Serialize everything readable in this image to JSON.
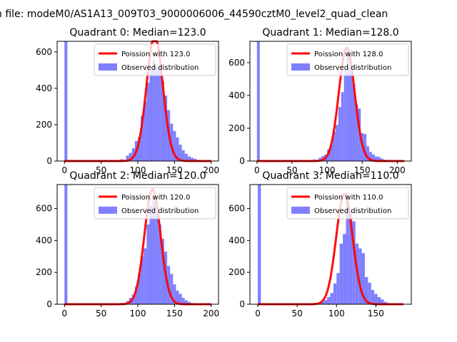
{
  "figure": {
    "suptitle": "n file: modeM0/AS1A13_009T03_9000006006_44590cztM0_level2_quad_clean"
  },
  "colors": {
    "hist": "#8080ff",
    "curve": "#ff0000",
    "axes": "#000000"
  },
  "chart_data": [
    {
      "type": "bar",
      "title": "Quadrant 0: Median=123.0",
      "xlim": [
        -10,
        210
      ],
      "ylim": [
        0,
        658
      ],
      "xticks": [
        0,
        50,
        100,
        150,
        200
      ],
      "yticks": [
        0,
        200,
        400,
        600
      ],
      "legend_position": "top-right",
      "curve_label": "Poission with 123.0",
      "hist_label": "Observed distribution",
      "bin_width": 4,
      "bins": [
        [
          0,
          1000
        ],
        [
          60,
          4
        ],
        [
          68,
          6
        ],
        [
          76,
          10
        ],
        [
          84,
          30
        ],
        [
          88,
          45
        ],
        [
          92,
          70
        ],
        [
          96,
          110
        ],
        [
          100,
          130
        ],
        [
          104,
          250
        ],
        [
          108,
          330
        ],
        [
          112,
          430
        ],
        [
          116,
          500
        ],
        [
          120,
          555
        ],
        [
          124,
          520
        ],
        [
          128,
          510
        ],
        [
          132,
          440
        ],
        [
          136,
          360
        ],
        [
          140,
          280
        ],
        [
          144,
          205
        ],
        [
          148,
          165
        ],
        [
          152,
          130
        ],
        [
          156,
          90
        ],
        [
          160,
          60
        ],
        [
          164,
          40
        ],
        [
          168,
          25
        ],
        [
          172,
          18
        ],
        [
          176,
          12
        ],
        [
          180,
          6
        ],
        [
          184,
          3
        ]
      ],
      "curve": {
        "mean": 123.0,
        "peak": 690,
        "x_range": [
          0,
          200
        ]
      }
    },
    {
      "type": "bar",
      "title": "Quadrant 1: Median=128.0",
      "xlim": [
        -10,
        220
      ],
      "ylim": [
        0,
        730
      ],
      "xticks": [
        0,
        50,
        100,
        150,
        200
      ],
      "yticks": [
        0,
        200,
        400,
        600
      ],
      "legend_position": "top-right",
      "curve_label": "Poission with 128.0",
      "hist_label": "Observed distribution",
      "bin_width": 4,
      "bins": [
        [
          0,
          1000
        ],
        [
          64,
          4
        ],
        [
          72,
          6
        ],
        [
          80,
          10
        ],
        [
          88,
          20
        ],
        [
          92,
          30
        ],
        [
          96,
          40
        ],
        [
          100,
          70
        ],
        [
          104,
          100
        ],
        [
          108,
          180
        ],
        [
          112,
          220
        ],
        [
          116,
          330
        ],
        [
          120,
          420
        ],
        [
          124,
          560
        ],
        [
          128,
          690
        ],
        [
          132,
          560
        ],
        [
          136,
          470
        ],
        [
          140,
          345
        ],
        [
          144,
          320
        ],
        [
          148,
          170
        ],
        [
          152,
          165
        ],
        [
          156,
          90
        ],
        [
          160,
          55
        ],
        [
          164,
          40
        ],
        [
          168,
          28
        ],
        [
          172,
          25
        ],
        [
          176,
          15
        ],
        [
          180,
          8
        ],
        [
          184,
          4
        ]
      ],
      "curve": {
        "mean": 128.0,
        "peak": 690,
        "x_range": [
          0,
          210
        ]
      }
    },
    {
      "type": "bar",
      "title": "Quadrant 2: Median=120.0",
      "xlim": [
        -10,
        210
      ],
      "ylim": [
        0,
        750
      ],
      "xticks": [
        0,
        50,
        100,
        150,
        200
      ],
      "yticks": [
        0,
        200,
        400,
        600
      ],
      "legend_position": "top-right",
      "curve_label": "Poission with 120.0",
      "hist_label": "Observed distribution",
      "bin_width": 4,
      "bins": [
        [
          0,
          1000
        ],
        [
          68,
          4
        ],
        [
          76,
          8
        ],
        [
          84,
          20
        ],
        [
          88,
          40
        ],
        [
          92,
          60
        ],
        [
          96,
          110
        ],
        [
          100,
          190
        ],
        [
          104,
          300
        ],
        [
          108,
          350
        ],
        [
          112,
          500
        ],
        [
          116,
          620
        ],
        [
          120,
          670
        ],
        [
          124,
          570
        ],
        [
          128,
          500
        ],
        [
          132,
          410
        ],
        [
          136,
          330
        ],
        [
          140,
          240
        ],
        [
          144,
          190
        ],
        [
          148,
          125
        ],
        [
          152,
          85
        ],
        [
          156,
          65
        ],
        [
          160,
          40
        ],
        [
          164,
          25
        ],
        [
          168,
          15
        ],
        [
          172,
          8
        ],
        [
          176,
          4
        ]
      ],
      "curve": {
        "mean": 120.0,
        "peak": 720,
        "x_range": [
          0,
          200
        ]
      }
    },
    {
      "type": "bar",
      "title": "Quadrant 3: Median=110.0",
      "xlim": [
        -10,
        195
      ],
      "ylim": [
        0,
        750
      ],
      "xticks": [
        0,
        50,
        100,
        150
      ],
      "yticks": [
        0,
        200,
        400,
        600
      ],
      "legend_position": "top-right",
      "curve_label": "Poission with 110.0",
      "hist_label": "Observed distribution",
      "bin_width": 4,
      "bins": [
        [
          0,
          1000
        ],
        [
          64,
          4
        ],
        [
          72,
          8
        ],
        [
          80,
          15
        ],
        [
          84,
          25
        ],
        [
          88,
          45
        ],
        [
          92,
          70
        ],
        [
          96,
          130
        ],
        [
          100,
          195
        ],
        [
          104,
          380
        ],
        [
          108,
          440
        ],
        [
          112,
          700
        ],
        [
          116,
          590
        ],
        [
          120,
          520
        ],
        [
          124,
          380
        ],
        [
          128,
          350
        ],
        [
          132,
          320
        ],
        [
          136,
          170
        ],
        [
          140,
          135
        ],
        [
          144,
          90
        ],
        [
          148,
          65
        ],
        [
          152,
          45
        ],
        [
          156,
          30
        ],
        [
          160,
          15
        ],
        [
          164,
          8
        ],
        [
          168,
          4
        ]
      ],
      "curve": {
        "mean": 110.0,
        "peak": 690,
        "x_range": [
          0,
          185
        ]
      }
    }
  ]
}
